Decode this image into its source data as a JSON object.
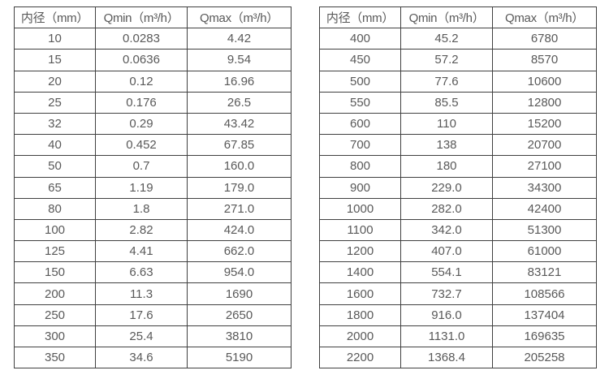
{
  "colors": {
    "background": "#ffffff",
    "table_border": "#404040",
    "text": "#595959"
  },
  "chart_data": [
    {
      "type": "table",
      "title": "",
      "headers": [
        "内径（mm）",
        "Qmin（m³/h）",
        "Qmax（m³/h）"
      ],
      "rows": [
        [
          "10",
          "0.0283",
          "4.42"
        ],
        [
          "15",
          "0.0636",
          "9.54"
        ],
        [
          "20",
          "0.12",
          "16.96"
        ],
        [
          "25",
          "0.176",
          "26.5"
        ],
        [
          "32",
          "0.29",
          "43.42"
        ],
        [
          "40",
          "0.452",
          "67.85"
        ],
        [
          "50",
          "0.7",
          "160.0"
        ],
        [
          "65",
          "1.19",
          "179.0"
        ],
        [
          "80",
          "1.8",
          "271.0"
        ],
        [
          "100",
          "2.82",
          "424.0"
        ],
        [
          "125",
          "4.41",
          "662.0"
        ],
        [
          "150",
          "6.63",
          "954.0"
        ],
        [
          "200",
          "11.3",
          "1690"
        ],
        [
          "250",
          "17.6",
          "2650"
        ],
        [
          "300",
          "25.4",
          "3810"
        ],
        [
          "350",
          "34.6",
          "5190"
        ]
      ]
    },
    {
      "type": "table",
      "title": "",
      "headers": [
        "内径（mm）",
        "Qmin（m³/h）",
        "Qmax（m³/h）"
      ],
      "rows": [
        [
          "400",
          "45.2",
          "6780"
        ],
        [
          "450",
          "57.2",
          "8570"
        ],
        [
          "500",
          "77.6",
          "10600"
        ],
        [
          "550",
          "85.5",
          "12800"
        ],
        [
          "600",
          "110",
          "15200"
        ],
        [
          "700",
          "138",
          "20700"
        ],
        [
          "800",
          "180",
          "27100"
        ],
        [
          "900",
          "229.0",
          "34300"
        ],
        [
          "1000",
          "282.0",
          "42400"
        ],
        [
          "1100",
          "342.0",
          "51300"
        ],
        [
          "1200",
          "407.0",
          "61000"
        ],
        [
          "1400",
          "554.1",
          "83121"
        ],
        [
          "1600",
          "732.7",
          "108566"
        ],
        [
          "1800",
          "916.0",
          "137404"
        ],
        [
          "2000",
          "1131.0",
          "169635"
        ],
        [
          "2200",
          "1368.4",
          "205258"
        ]
      ]
    }
  ]
}
